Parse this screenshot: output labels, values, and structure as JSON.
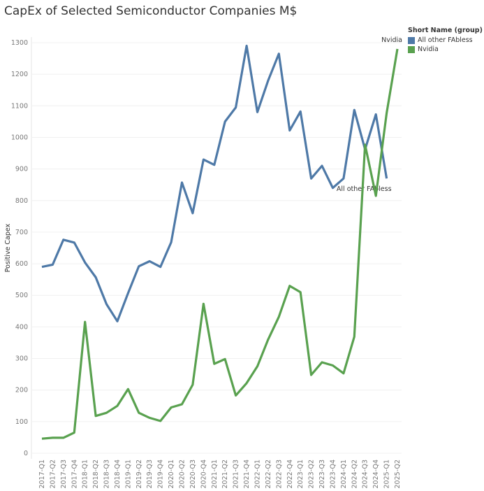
{
  "chart_data": {
    "type": "line",
    "title": "CapEx of Selected Semiconductor Companies M$",
    "ylabel": "Positive Capex",
    "xlabel": "",
    "ylim": [
      0,
      1300
    ],
    "yticks": [
      0,
      100,
      200,
      300,
      400,
      500,
      600,
      700,
      800,
      900,
      1000,
      1100,
      1200,
      1300
    ],
    "grid": true,
    "legend_title": "Short Name (group)",
    "legend_position": "top-right",
    "categories": [
      "2017-Q1",
      "2017-Q2",
      "2017-Q3",
      "2017-Q4",
      "2018-Q1",
      "2018-Q2",
      "2018-Q3",
      "2018-Q4",
      "2019-Q1",
      "2019-Q2",
      "2019-Q3",
      "2019-Q4",
      "2020-Q1",
      "2020-Q2",
      "2020-Q3",
      "2020-Q4",
      "2021-Q1",
      "2021-Q2",
      "2021-Q3",
      "2021-Q4",
      "2022-Q1",
      "2022-Q2",
      "2022-Q3",
      "2022-Q4",
      "2023-Q1",
      "2023-Q2",
      "2023-Q3",
      "2023-Q4",
      "2024-Q1",
      "2024-Q2",
      "2024-Q3",
      "2024-Q4",
      "2025-Q1",
      "2025-Q2"
    ],
    "series": [
      {
        "name": "All other FAbless",
        "color": "#4e79a7",
        "values": [
          590,
          597,
          676,
          667,
          604,
          557,
          472,
          418,
          507,
          592,
          608,
          590,
          668,
          857,
          760,
          930,
          913,
          1050,
          1095,
          1290,
          1080,
          1180,
          1265,
          1022,
          1082,
          870,
          910,
          840,
          870,
          1087,
          962,
          1073,
          870,
          null
        ]
      },
      {
        "name": "Nvidia",
        "color": "#59a14f",
        "values": [
          46,
          49,
          49,
          65,
          416,
          118,
          128,
          150,
          203,
          128,
          112,
          102,
          145,
          155,
          217,
          473,
          283,
          298,
          183,
          222,
          275,
          360,
          432,
          530,
          510,
          248,
          288,
          278,
          253,
          369,
          977,
          815,
          1077,
          1280
        ]
      }
    ]
  }
}
